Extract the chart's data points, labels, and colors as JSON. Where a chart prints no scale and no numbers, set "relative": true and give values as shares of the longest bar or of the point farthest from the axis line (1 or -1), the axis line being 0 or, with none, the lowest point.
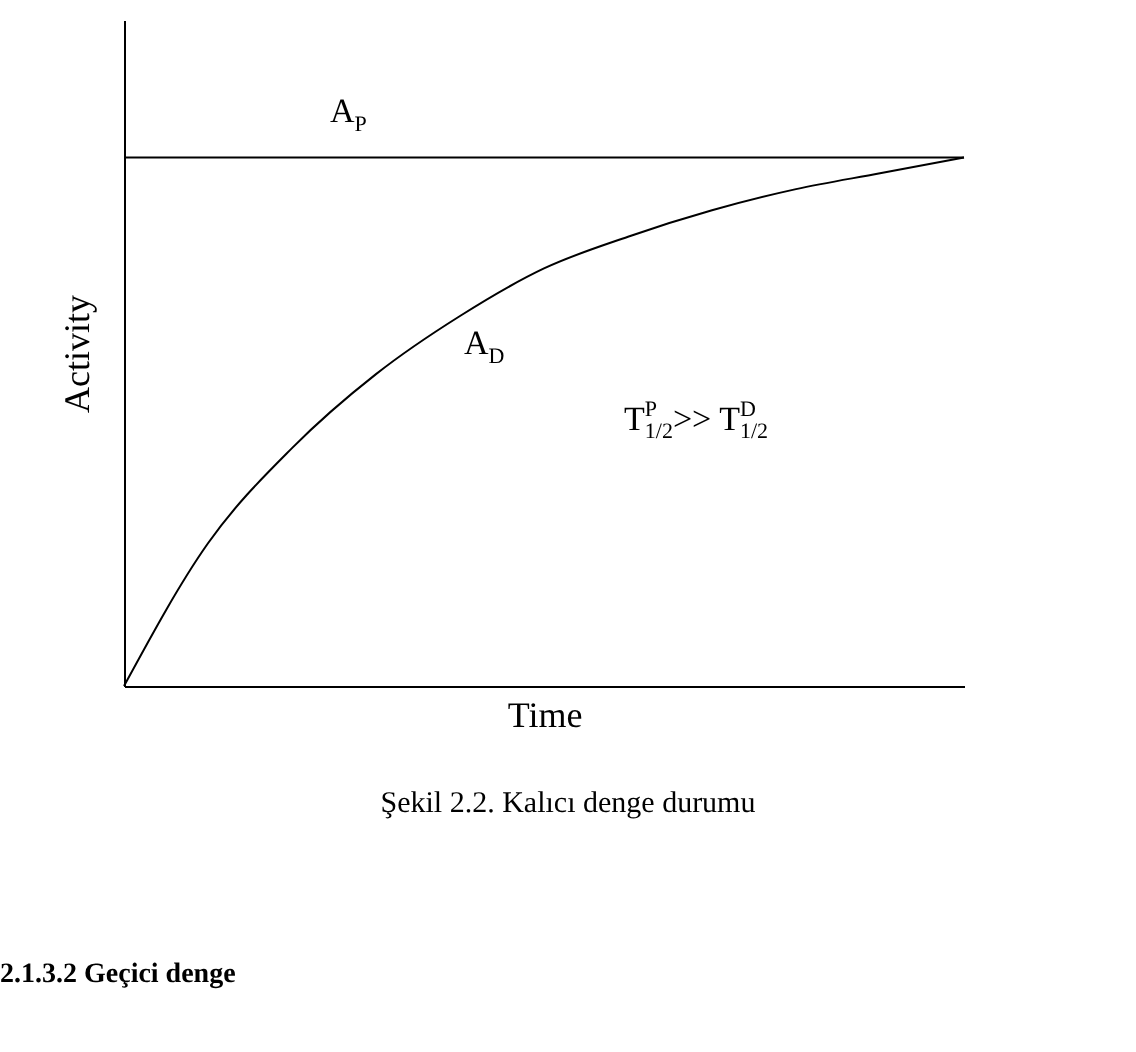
{
  "chart_data": {
    "type": "line",
    "xlabel": "Time",
    "ylabel": "Activity",
    "relative": true,
    "legend": false,
    "marker": "none",
    "line_style": "solid",
    "categories": [
      null,
      null,
      null,
      null,
      null,
      null,
      null,
      null,
      null,
      null,
      null
    ],
    "series": [
      {
        "name": "A$_{P}$",
        "color": "#000000",
        "values": [
          1,
          1,
          1,
          1,
          1,
          1,
          1,
          1,
          1,
          1,
          1
        ]
      },
      {
        "name": "A$_{D}$",
        "color": "#000000",
        "values": [
          0,
          0.27,
          0.45,
          0.59,
          0.7,
          0.79,
          0.85,
          0.9,
          0.94,
          0.97,
          1
        ]
      }
    ],
    "annotations": [
      "T$^{P}$$_{1/2}$>> T$^{D}$$_{1/2}$",
      "Şekil 2.2. Kalıcı denge durumu",
      "2.1.3.2 Geçici denge"
    ]
  }
}
